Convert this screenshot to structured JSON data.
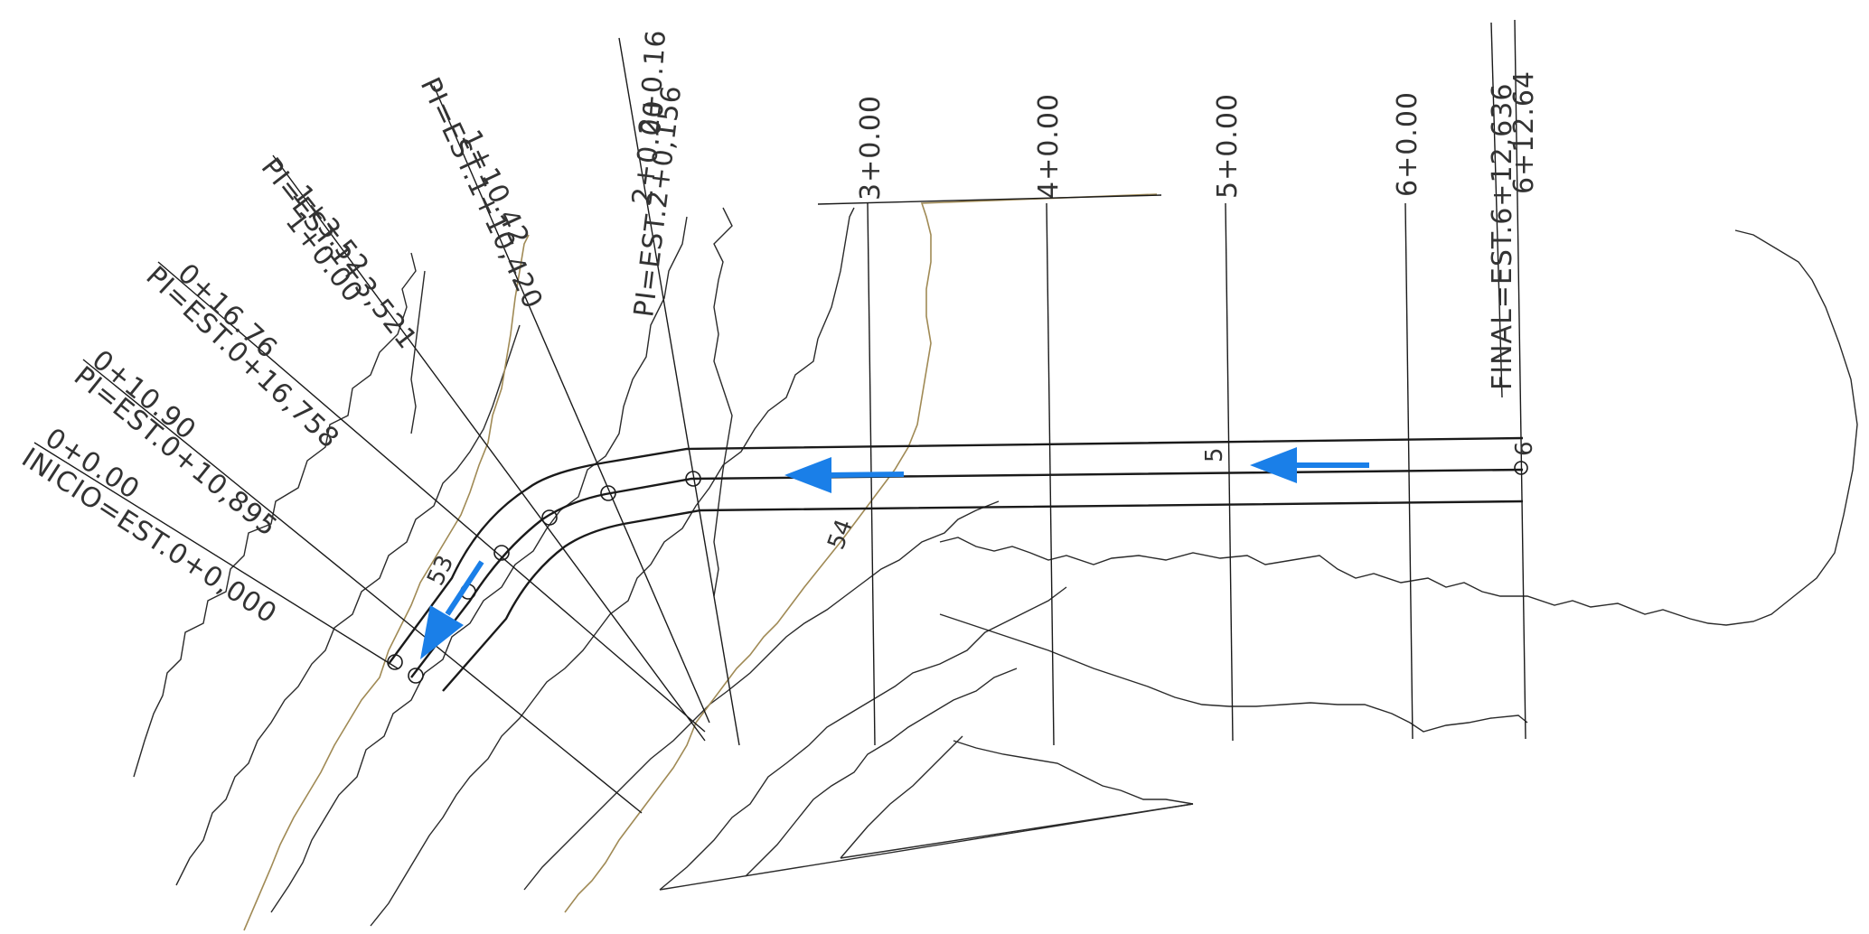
{
  "drawing": {
    "station_labels": {
      "inicio": "INICIO=EST.0+0,000",
      "est_0_0": "0+0.00",
      "pi1": "PI=EST.0+10,895",
      "est_0_10": "0+10.90",
      "pi2": "PI=EST.0+16,758",
      "est_0_16": "0+16.76",
      "pi3": "PI=EST.1+3,521",
      "est_1_0": "1+0.00",
      "est_1_3": "1+3.52",
      "pi4": "PI=EST.1+10,420",
      "est_1_10": "1+10.42",
      "pi5": "PI=EST.2+0,156",
      "est_2_0": "2+0.00",
      "est_2_0_16": "2+0.16",
      "est_3": "3+0.00",
      "est_4": "4+0.00",
      "est_5": "5+0.00",
      "est_6": "6+0.00",
      "final": "FINAL=EST.6+12,636",
      "est_6_12": "6+12.64"
    },
    "contour_labels": {
      "c53": "53",
      "c54": "54",
      "c5": "5",
      "c6": "6"
    },
    "colors": {
      "arrow": "#1a7fe8",
      "linework": "#1a1a1a",
      "contour_highlight": "#a08a55"
    },
    "icons": [
      "direction-arrow-icon"
    ]
  }
}
